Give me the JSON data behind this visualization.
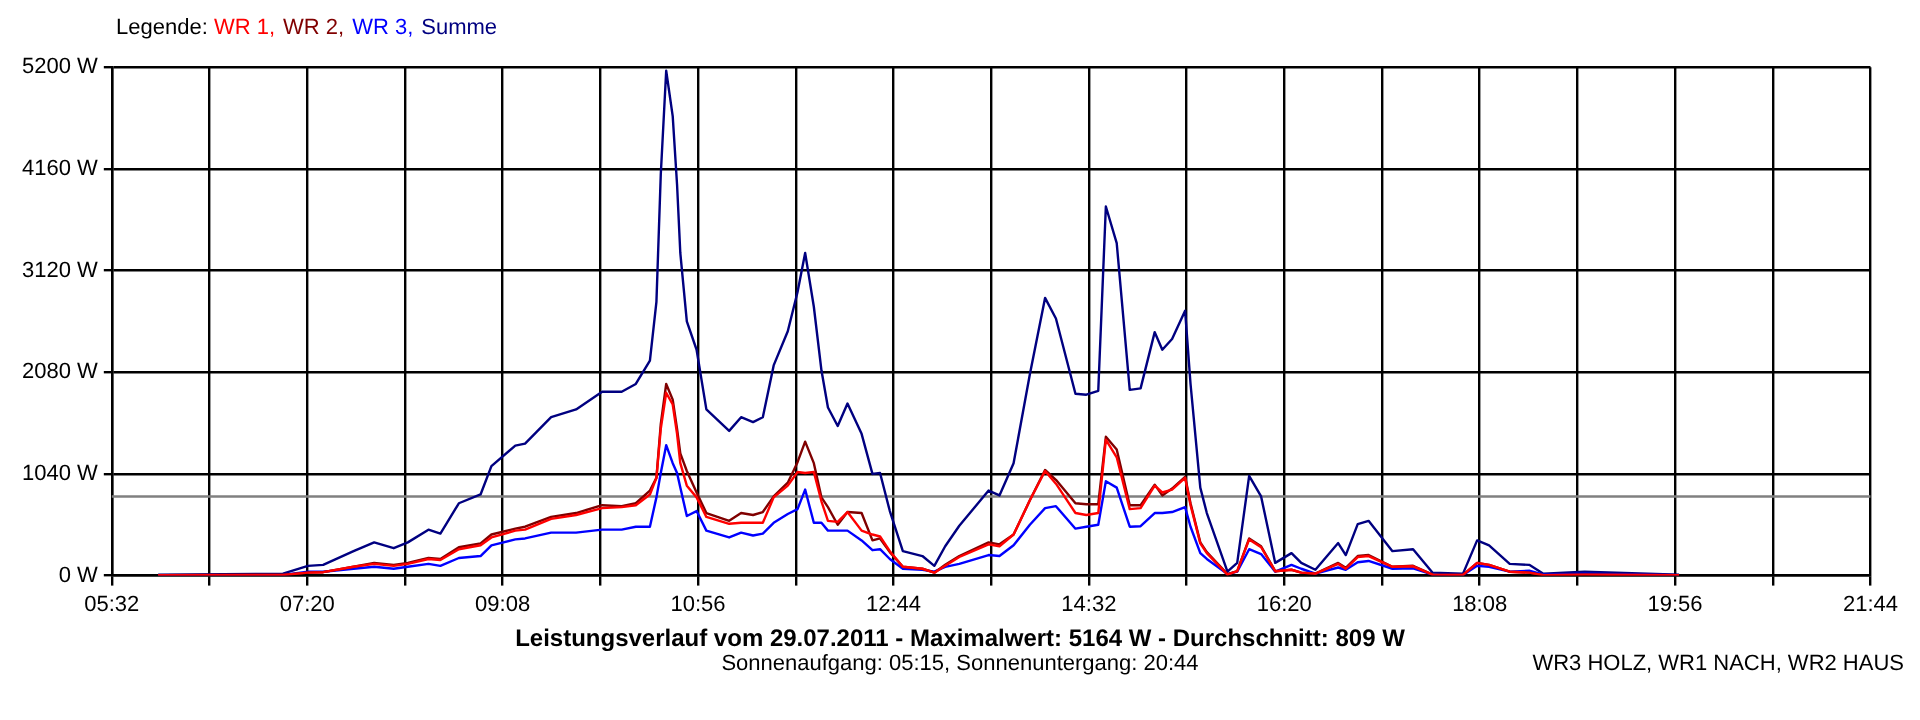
{
  "chart_data": {
    "type": "line",
    "title": "Leistungsverlauf vom 29.07.2011 - Maximalwert: 5164 W - Durchschnitt: 809 W",
    "subtitle": "Sonnenaufgang: 05:15, Sonnenuntergang: 20:44",
    "annotations": [
      "WR3 HOLZ, WR1 NACH, WR2 HAUS"
    ],
    "legend_title": "Legende:",
    "legend": "top left",
    "grid": true,
    "marker": "none",
    "line_style": "solid",
    "x": [
      5.96,
      7.11,
      7.34,
      7.48,
      7.76,
      7.95,
      8.13,
      8.26,
      8.45,
      8.56,
      8.73,
      8.93,
      9.03,
      9.25,
      9.34,
      9.58,
      9.81,
      10.05,
      10.23,
      10.36,
      10.49,
      10.55,
      10.59,
      10.64,
      10.7,
      10.74,
      10.77,
      10.83,
      10.92,
      11.01,
      11.22,
      11.33,
      11.44,
      11.53,
      11.63,
      11.76,
      11.85,
      11.92,
      12.0,
      12.07,
      12.13,
      12.22,
      12.31,
      12.44,
      12.54,
      12.61,
      12.7,
      12.82,
      13.0,
      13.11,
      13.21,
      13.34,
      13.61,
      13.71,
      13.84,
      13.99,
      14.13,
      14.23,
      14.41,
      14.51,
      14.62,
      14.69,
      14.79,
      14.91,
      15.01,
      15.14,
      15.21,
      15.3,
      15.42,
      15.47,
      15.56,
      15.62,
      15.81,
      15.9,
      16.01,
      16.12,
      16.25,
      16.4,
      16.49,
      16.62,
      16.83,
      16.9,
      17.01,
      17.11,
      17.33,
      17.52,
      17.7,
      17.98,
      18.11,
      18.22,
      18.41,
      18.59,
      18.72,
      19.1,
      19.97
    ],
    "series": [
      {
        "name": "WR 1,",
        "color": "#ff0000",
        "values": [
          4,
          7,
          30,
          35,
          90,
          120,
          100,
          120,
          170,
          160,
          270,
          310,
          390,
          460,
          470,
          580,
          620,
          690,
          700,
          720,
          830,
          1000,
          1500,
          1870,
          1750,
          1450,
          1150,
          920,
          800,
          600,
          530,
          540,
          540,
          540,
          800,
          920,
          1060,
          1050,
          1060,
          760,
          560,
          550,
          650,
          460,
          420,
          400,
          250,
          90,
          70,
          30,
          100,
          190,
          320,
          300,
          420,
          770,
          1070,
          940,
          640,
          620,
          640,
          1390,
          1210,
          680,
          690,
          920,
          850,
          880,
          1000,
          720,
          330,
          230,
          10,
          45,
          370,
          290,
          45,
          60,
          30,
          20,
          120,
          70,
          190,
          200,
          90,
          95,
          10,
          7,
          130,
          110,
          40,
          30,
          5,
          10,
          3
        ]
      },
      {
        "name": "WR 2,",
        "color": "#800000",
        "values": [
          4,
          7,
          30,
          35,
          90,
          130,
          110,
          130,
          180,
          170,
          290,
          330,
          420,
          480,
          500,
          600,
          640,
          720,
          710,
          740,
          870,
          1000,
          1550,
          1960,
          1800,
          1500,
          1250,
          1070,
          850,
          640,
          560,
          640,
          620,
          650,
          810,
          950,
          1160,
          1370,
          1150,
          800,
          700,
          520,
          650,
          640,
          360,
          380,
          240,
          90,
          70,
          30,
          110,
          200,
          340,
          320,
          420,
          770,
          1080,
          980,
          740,
          730,
          730,
          1420,
          1290,
          720,
          720,
          930,
          820,
          890,
          1010,
          740,
          340,
          240,
          15,
          45,
          380,
          300,
          45,
          60,
          30,
          20,
          130,
          80,
          200,
          210,
          90,
          100,
          10,
          7,
          130,
          110,
          40,
          30,
          5,
          10,
          3
        ]
      },
      {
        "name": "WR 3,",
        "color": "#0000ff",
        "values": [
          2,
          6,
          40,
          40,
          70,
          90,
          70,
          90,
          120,
          100,
          180,
          200,
          310,
          370,
          380,
          440,
          440,
          470,
          470,
          500,
          500,
          800,
          1050,
          1334,
          1150,
          1050,
          900,
          610,
          660,
          460,
          390,
          440,
          410,
          430,
          540,
          630,
          680,
          880,
          540,
          540,
          460,
          460,
          460,
          360,
          260,
          270,
          170,
          70,
          60,
          40,
          90,
          120,
          210,
          200,
          310,
          520,
          690,
          710,
          480,
          500,
          520,
          965,
          900,
          500,
          505,
          640,
          640,
          650,
          700,
          500,
          230,
          170,
          15,
          40,
          270,
          220,
          40,
          110,
          70,
          20,
          83,
          60,
          136,
          150,
          70,
          75,
          10,
          6,
          100,
          90,
          40,
          50,
          10,
          20,
          4
        ]
      },
      {
        "name": "Summe",
        "color": "#000080",
        "values": [
          10,
          20,
          100,
          110,
          250,
          340,
          280,
          340,
          470,
          430,
          740,
          830,
          1120,
          1330,
          1350,
          1620,
          1700,
          1880,
          1880,
          1960,
          2200,
          2800,
          4100,
          5164,
          4700,
          4000,
          3300,
          2600,
          2310,
          1700,
          1480,
          1620,
          1570,
          1620,
          2150,
          2500,
          2900,
          3300,
          2750,
          2100,
          1720,
          1530,
          1760,
          1450,
          1040,
          1050,
          660,
          250,
          200,
          100,
          300,
          510,
          870,
          820,
          1150,
          2060,
          2840,
          2630,
          1860,
          1850,
          1890,
          3775,
          3400,
          1900,
          1915,
          2490,
          2310,
          2420,
          2710,
          1960,
          900,
          640,
          40,
          130,
          1020,
          810,
          130,
          230,
          130,
          60,
          333,
          210,
          526,
          560,
          250,
          270,
          30,
          20,
          360,
          310,
          120,
          110,
          20,
          40,
          10
        ]
      }
    ],
    "ref_lines": [
      {
        "axis": "y",
        "value": 809,
        "color": "#808080"
      }
    ],
    "xlim": [
      5.5333,
      21.7333
    ],
    "xticks": [
      {
        "value": 5.5333,
        "label": "05:32"
      },
      {
        "value": 6.4333,
        "label": null
      },
      {
        "value": 7.3333,
        "label": "07:20"
      },
      {
        "value": 8.2333,
        "label": null
      },
      {
        "value": 9.1333,
        "label": "09:08"
      },
      {
        "value": 10.0333,
        "label": null
      },
      {
        "value": 10.9333,
        "label": "10:56"
      },
      {
        "value": 11.8333,
        "label": null
      },
      {
        "value": 12.7333,
        "label": "12:44"
      },
      {
        "value": 13.6333,
        "label": null
      },
      {
        "value": 14.5333,
        "label": "14:32"
      },
      {
        "value": 15.4333,
        "label": null
      },
      {
        "value": 16.3333,
        "label": "16:20"
      },
      {
        "value": 17.2333,
        "label": null
      },
      {
        "value": 18.1333,
        "label": "18:08"
      },
      {
        "value": 19.0333,
        "label": null
      },
      {
        "value": 19.9333,
        "label": "19:56"
      },
      {
        "value": 20.8333,
        "label": null
      },
      {
        "value": 21.7333,
        "label": "21:44"
      }
    ],
    "ylim": [
      0,
      5200
    ],
    "yticks": [
      {
        "value": 0,
        "label": "0 W"
      },
      {
        "value": 1040,
        "label": "1040 W"
      },
      {
        "value": 2080,
        "label": "2080 W"
      },
      {
        "value": 3120,
        "label": "3120 W"
      },
      {
        "value": 4160,
        "label": "4160 W"
      },
      {
        "value": 5200,
        "label": "5200 W"
      }
    ]
  }
}
